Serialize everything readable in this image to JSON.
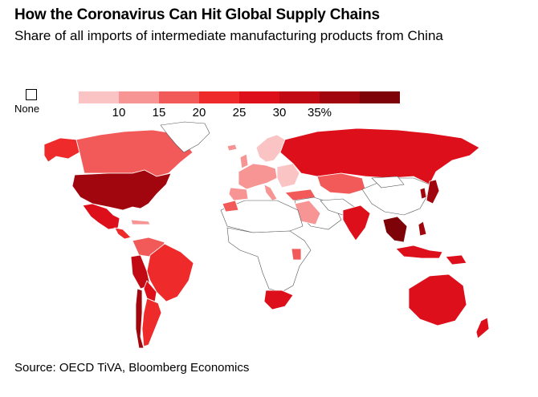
{
  "title": "How the Coronavirus Can Hit Global Supply Chains",
  "subtitle": "Share of all imports of intermediate manufacturing products from China",
  "legend": {
    "none_label": "None",
    "colors": [
      "#fbc4c4",
      "#f79494",
      "#f25a5a",
      "#ee2a2a",
      "#dd0f1b",
      "#c20a14",
      "#a1060e",
      "#7d0309"
    ],
    "ticks": [
      "10",
      "15",
      "20",
      "25",
      "30",
      "35%"
    ]
  },
  "map_fill": {
    "none": "#ffffff",
    "land_outline": "#555555"
  },
  "source": "Source: OECD TiVA, Bloomberg Economics"
}
